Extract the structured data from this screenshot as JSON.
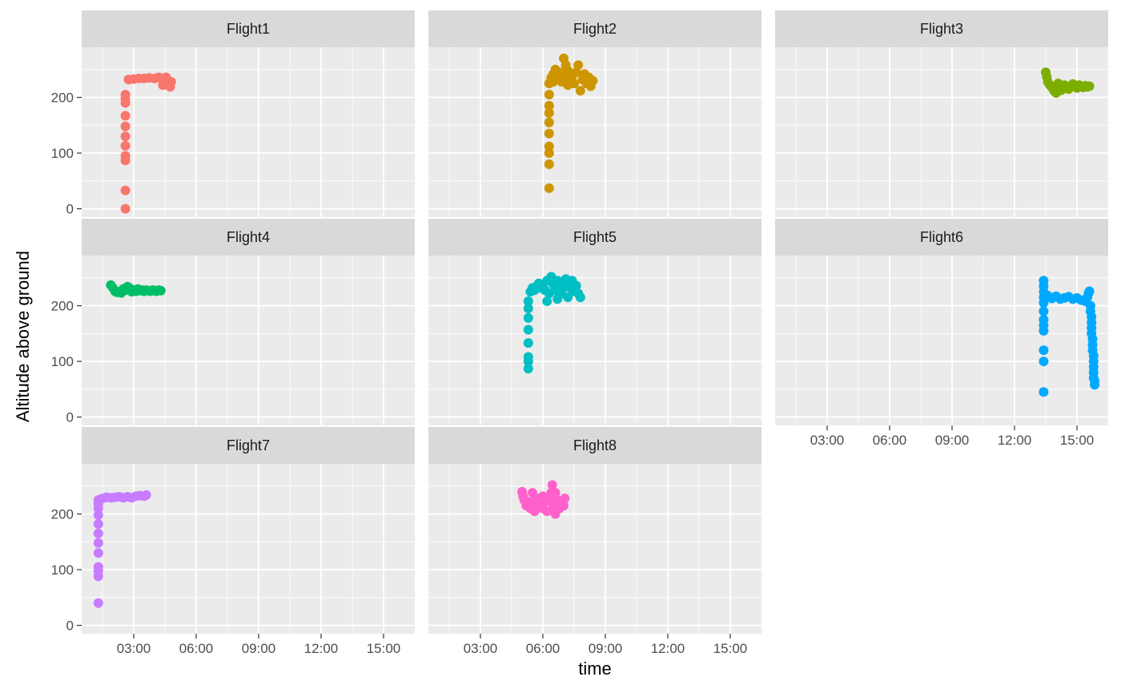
{
  "chart_data": {
    "type": "scatter",
    "xlabel": "time",
    "ylabel": "Altitude above ground",
    "x_unit": "hours",
    "xlim": [
      0.5,
      16.5
    ],
    "ylim": [
      -15,
      290
    ],
    "x_ticks": [
      {
        "value": 3,
        "label": "03:00"
      },
      {
        "value": 6,
        "label": "06:00"
      },
      {
        "value": 9,
        "label": "09:00"
      },
      {
        "value": 12,
        "label": "12:00"
      },
      {
        "value": 15,
        "label": "15:00"
      }
    ],
    "y_ticks": [
      {
        "value": 0,
        "label": "0"
      },
      {
        "value": 100,
        "label": "100"
      },
      {
        "value": 200,
        "label": "200"
      }
    ],
    "grid": true,
    "legend": "none",
    "panels": [
      {
        "name": "Flight1",
        "color": "#F8766D",
        "points": [
          [
            2.6,
            0
          ],
          [
            2.6,
            33
          ],
          [
            2.6,
            87
          ],
          [
            2.6,
            95
          ],
          [
            2.6,
            113
          ],
          [
            2.6,
            130
          ],
          [
            2.6,
            148
          ],
          [
            2.6,
            167
          ],
          [
            2.6,
            190
          ],
          [
            2.6,
            198
          ],
          [
            2.6,
            205
          ],
          [
            2.75,
            232
          ],
          [
            3.0,
            233
          ],
          [
            3.25,
            234
          ],
          [
            3.5,
            234
          ],
          [
            3.75,
            235
          ],
          [
            4.0,
            234
          ],
          [
            4.2,
            236
          ],
          [
            4.35,
            232
          ],
          [
            4.5,
            230
          ],
          [
            4.6,
            226
          ],
          [
            4.7,
            222
          ],
          [
            4.75,
            219
          ],
          [
            4.4,
            222
          ],
          [
            4.55,
            236
          ],
          [
            4.8,
            228
          ]
        ]
      },
      {
        "name": "Flight2",
        "color": "#CD9600",
        "points": [
          [
            6.3,
            37
          ],
          [
            6.3,
            80
          ],
          [
            6.3,
            100
          ],
          [
            6.3,
            112
          ],
          [
            6.3,
            135
          ],
          [
            6.3,
            155
          ],
          [
            6.3,
            172
          ],
          [
            6.3,
            185
          ],
          [
            6.3,
            205
          ],
          [
            6.3,
            225
          ],
          [
            6.4,
            235
          ],
          [
            6.5,
            242
          ],
          [
            6.6,
            250
          ],
          [
            6.7,
            238
          ],
          [
            6.8,
            245
          ],
          [
            6.9,
            228
          ],
          [
            7.0,
            240
          ],
          [
            7.0,
            270
          ],
          [
            7.1,
            258
          ],
          [
            7.2,
            248
          ],
          [
            7.3,
            232
          ],
          [
            7.4,
            238
          ],
          [
            7.5,
            225
          ],
          [
            7.6,
            245
          ],
          [
            7.7,
            258
          ],
          [
            7.8,
            212
          ],
          [
            7.9,
            232
          ],
          [
            8.0,
            242
          ],
          [
            8.1,
            225
          ],
          [
            8.2,
            236
          ],
          [
            8.3,
            220
          ],
          [
            8.4,
            230
          ],
          [
            6.5,
            228
          ],
          [
            7.2,
            222
          ]
        ]
      },
      {
        "name": "Flight3",
        "color": "#7CAE00",
        "points": [
          [
            13.5,
            245
          ],
          [
            13.55,
            237
          ],
          [
            13.6,
            228
          ],
          [
            13.7,
            222
          ],
          [
            13.8,
            218
          ],
          [
            13.9,
            212
          ],
          [
            14.0,
            208
          ],
          [
            14.1,
            225
          ],
          [
            14.2,
            220
          ],
          [
            14.3,
            217
          ],
          [
            14.4,
            222
          ],
          [
            14.5,
            218
          ],
          [
            14.6,
            215
          ],
          [
            14.7,
            220
          ],
          [
            14.8,
            224
          ],
          [
            14.9,
            221
          ],
          [
            15.0,
            217
          ],
          [
            15.1,
            222
          ],
          [
            15.2,
            220
          ],
          [
            15.3,
            218
          ],
          [
            15.4,
            221
          ],
          [
            15.5,
            219
          ],
          [
            15.6,
            220
          ],
          [
            14.05,
            215
          ],
          [
            14.25,
            213
          ]
        ]
      },
      {
        "name": "Flight4",
        "color": "#00BE67",
        "points": [
          [
            1.9,
            237
          ],
          [
            2.0,
            232
          ],
          [
            2.1,
            226
          ],
          [
            2.2,
            224
          ],
          [
            2.3,
            225
          ],
          [
            2.4,
            223
          ],
          [
            2.5,
            230
          ],
          [
            2.6,
            228
          ],
          [
            2.7,
            234
          ],
          [
            2.8,
            232
          ],
          [
            2.9,
            225
          ],
          [
            3.0,
            228
          ],
          [
            3.1,
            226
          ],
          [
            3.2,
            230
          ],
          [
            3.3,
            227
          ],
          [
            3.4,
            228
          ],
          [
            3.5,
            226
          ],
          [
            3.6,
            228
          ],
          [
            3.7,
            227
          ],
          [
            3.8,
            226
          ],
          [
            3.9,
            228
          ],
          [
            4.0,
            227
          ],
          [
            4.1,
            226
          ],
          [
            4.2,
            228
          ],
          [
            4.3,
            227
          ]
        ]
      },
      {
        "name": "Flight5",
        "color": "#00BFC4",
        "points": [
          [
            5.3,
            87
          ],
          [
            5.3,
            100
          ],
          [
            5.3,
            108
          ],
          [
            5.3,
            133
          ],
          [
            5.3,
            157
          ],
          [
            5.3,
            178
          ],
          [
            5.3,
            195
          ],
          [
            5.3,
            208
          ],
          [
            5.4,
            225
          ],
          [
            5.5,
            232
          ],
          [
            5.6,
            228
          ],
          [
            5.7,
            235
          ],
          [
            5.8,
            240
          ],
          [
            5.9,
            232
          ],
          [
            6.0,
            238
          ],
          [
            6.1,
            228
          ],
          [
            6.2,
            245
          ],
          [
            6.3,
            222
          ],
          [
            6.4,
            252
          ],
          [
            6.5,
            238
          ],
          [
            6.6,
            228
          ],
          [
            6.7,
            245
          ],
          [
            6.8,
            232
          ],
          [
            6.9,
            222
          ],
          [
            7.0,
            235
          ],
          [
            7.1,
            248
          ],
          [
            7.2,
            215
          ],
          [
            7.3,
            232
          ],
          [
            7.4,
            245
          ],
          [
            7.5,
            226
          ],
          [
            7.6,
            236
          ],
          [
            7.7,
            222
          ],
          [
            7.8,
            215
          ],
          [
            6.2,
            208
          ],
          [
            6.7,
            212
          ]
        ]
      },
      {
        "name": "Flight6",
        "color": "#00A9FF",
        "points": [
          [
            13.4,
            45
          ],
          [
            13.4,
            100
          ],
          [
            13.4,
            120
          ],
          [
            13.4,
            155
          ],
          [
            13.4,
            165
          ],
          [
            13.4,
            175
          ],
          [
            13.4,
            190
          ],
          [
            13.4,
            205
          ],
          [
            13.4,
            215
          ],
          [
            13.4,
            225
          ],
          [
            13.4,
            235
          ],
          [
            13.4,
            245
          ],
          [
            13.6,
            218
          ],
          [
            13.8,
            213
          ],
          [
            14.0,
            217
          ],
          [
            14.2,
            212
          ],
          [
            14.4,
            214
          ],
          [
            14.6,
            216
          ],
          [
            14.8,
            212
          ],
          [
            15.0,
            214
          ],
          [
            15.2,
            210
          ],
          [
            15.4,
            208
          ],
          [
            15.5,
            215
          ],
          [
            15.55,
            222
          ],
          [
            15.6,
            226
          ],
          [
            15.65,
            200
          ],
          [
            15.65,
            190
          ],
          [
            15.7,
            180
          ],
          [
            15.7,
            170
          ],
          [
            15.7,
            160
          ],
          [
            15.7,
            150
          ],
          [
            15.75,
            140
          ],
          [
            15.75,
            130
          ],
          [
            15.75,
            120
          ],
          [
            15.8,
            110
          ],
          [
            15.8,
            100
          ],
          [
            15.8,
            90
          ],
          [
            15.8,
            80
          ],
          [
            15.8,
            70
          ],
          [
            15.85,
            58
          ],
          [
            15.85,
            65
          ]
        ]
      },
      {
        "name": "Flight7",
        "color": "#C77CFF",
        "points": [
          [
            1.3,
            40
          ],
          [
            1.3,
            88
          ],
          [
            1.3,
            98
          ],
          [
            1.3,
            105
          ],
          [
            1.3,
            130
          ],
          [
            1.3,
            148
          ],
          [
            1.3,
            165
          ],
          [
            1.3,
            182
          ],
          [
            1.3,
            198
          ],
          [
            1.3,
            210
          ],
          [
            1.3,
            218
          ],
          [
            1.3,
            225
          ],
          [
            1.5,
            228
          ],
          [
            1.7,
            230
          ],
          [
            1.9,
            229
          ],
          [
            2.1,
            230
          ],
          [
            2.3,
            231
          ],
          [
            2.5,
            229
          ],
          [
            2.7,
            231
          ],
          [
            2.9,
            229
          ],
          [
            3.1,
            232
          ],
          [
            3.3,
            233
          ],
          [
            3.5,
            232
          ],
          [
            3.6,
            234
          ]
        ]
      },
      {
        "name": "Flight8",
        "color": "#FF61CC",
        "points": [
          [
            5.0,
            240
          ],
          [
            5.05,
            232
          ],
          [
            5.1,
            225
          ],
          [
            5.2,
            215
          ],
          [
            5.3,
            222
          ],
          [
            5.4,
            210
          ],
          [
            5.5,
            220
          ],
          [
            5.6,
            205
          ],
          [
            5.7,
            228
          ],
          [
            5.8,
            212
          ],
          [
            5.9,
            218
          ],
          [
            6.0,
            210
          ],
          [
            6.1,
            222
          ],
          [
            6.2,
            205
          ],
          [
            6.3,
            228
          ],
          [
            6.4,
            238
          ],
          [
            6.45,
            252
          ],
          [
            6.5,
            215
          ],
          [
            6.6,
            200
          ],
          [
            6.7,
            225
          ],
          [
            6.8,
            210
          ],
          [
            6.9,
            222
          ],
          [
            7.0,
            215
          ],
          [
            7.05,
            228
          ],
          [
            5.5,
            238
          ],
          [
            6.0,
            232
          ],
          [
            6.6,
            238
          ]
        ]
      }
    ]
  }
}
